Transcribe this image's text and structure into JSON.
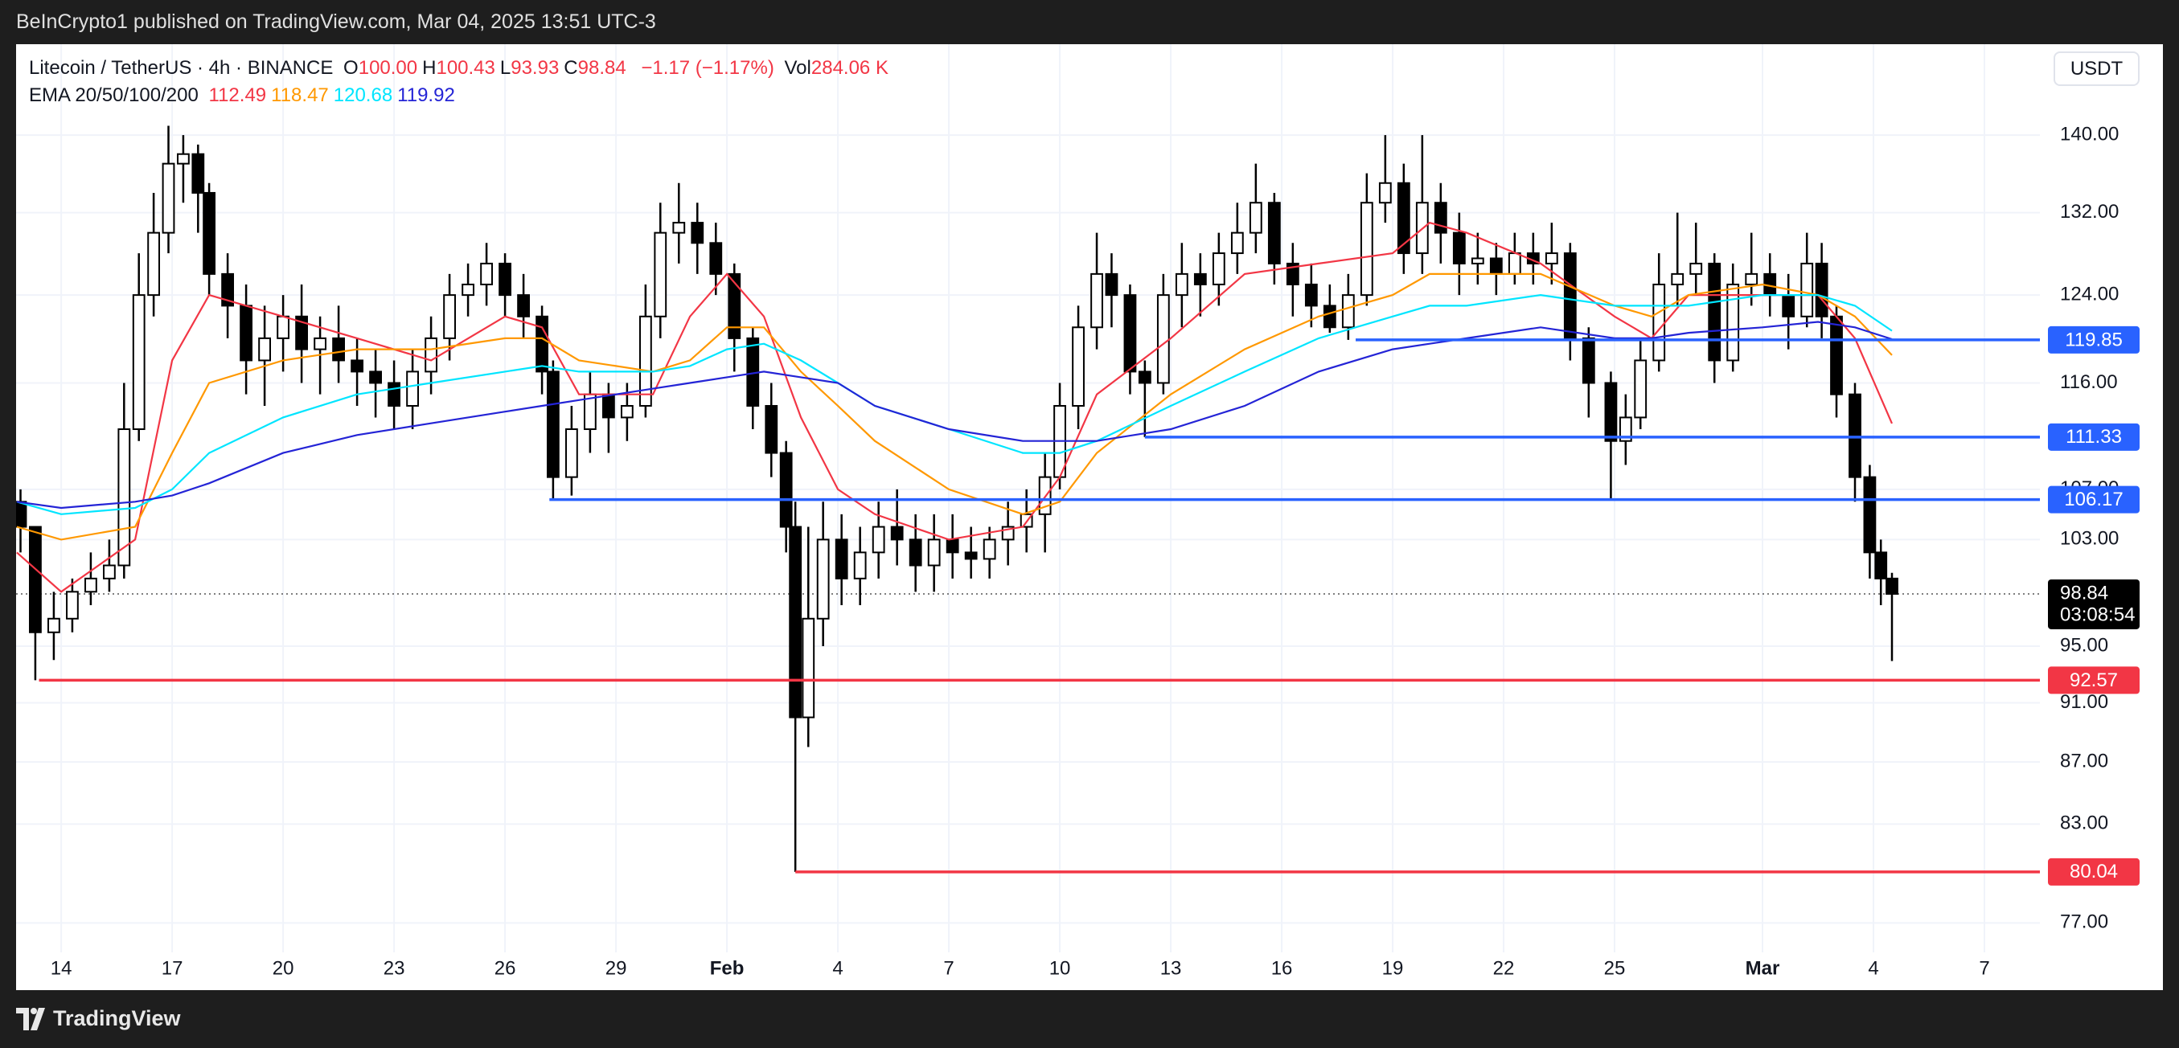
{
  "header": {
    "published": "BeInCrypto1 published on TradingView.com, Mar 04, 2025 13:51 UTC-3"
  },
  "legend": {
    "symbol": "Litecoin / TetherUS · 4h · BINANCE",
    "ohlc": [
      {
        "label": "O",
        "value": "100.00"
      },
      {
        "label": "H",
        "value": "100.43"
      },
      {
        "label": "L",
        "value": "93.93"
      },
      {
        "label": "C",
        "value": "98.84"
      }
    ],
    "change": "−1.17 (−1.17%)",
    "volume_label": "Vol",
    "volume": "284.06 K",
    "ema_label": "EMA 20/50/100/200"
  },
  "currency_button": "USDT",
  "footer": {
    "brand": "TradingView"
  },
  "chart_data": {
    "type": "candlestick",
    "log_scale": true,
    "grid": true,
    "up_color": "#ffffff",
    "down_color": "#000000",
    "xlim": [
      -1.22,
      53.5
    ],
    "ylim": [
      75.3,
      150
    ],
    "xticks": [
      {
        "value": 0,
        "label": "14"
      },
      {
        "value": 3,
        "label": "17"
      },
      {
        "value": 6,
        "label": "20"
      },
      {
        "value": 9,
        "label": "23"
      },
      {
        "value": 12,
        "label": "26"
      },
      {
        "value": 15,
        "label": "29"
      },
      {
        "value": 18,
        "label": "Feb",
        "bold": true
      },
      {
        "value": 21,
        "label": "4"
      },
      {
        "value": 24,
        "label": "7"
      },
      {
        "value": 27,
        "label": "10"
      },
      {
        "value": 30,
        "label": "13"
      },
      {
        "value": 33,
        "label": "16"
      },
      {
        "value": 36,
        "label": "19"
      },
      {
        "value": 39,
        "label": "22"
      },
      {
        "value": 42,
        "label": "25"
      },
      {
        "value": 46,
        "label": "Mar",
        "bold": true
      },
      {
        "value": 49,
        "label": "4"
      },
      {
        "value": 52,
        "label": "7"
      }
    ],
    "yticks": [
      {
        "value": 140,
        "label": "140.00"
      },
      {
        "value": 132,
        "label": "132.00"
      },
      {
        "value": 124,
        "label": "124.00"
      },
      {
        "value": 116,
        "label": "116.00"
      },
      {
        "value": 107,
        "label": "107.00"
      },
      {
        "value": 103,
        "label": "103.00"
      },
      {
        "value": 95,
        "label": "95.00"
      },
      {
        "value": 91,
        "label": "91.00"
      },
      {
        "value": 87,
        "label": "87.00"
      },
      {
        "value": 83,
        "label": "83.00"
      },
      {
        "value": 77,
        "label": "77.00"
      }
    ],
    "candles": [
      [
        -1.1,
        106,
        107,
        102,
        104
      ],
      [
        -0.7,
        104,
        104,
        92.57,
        96
      ],
      [
        -0.2,
        96,
        99,
        94,
        97
      ],
      [
        0.3,
        97,
        100,
        96,
        99
      ],
      [
        0.8,
        99,
        102,
        98,
        100
      ],
      [
        1.3,
        100,
        103,
        99,
        101
      ],
      [
        1.7,
        101,
        116,
        100,
        112
      ],
      [
        2.1,
        112,
        128,
        111,
        124
      ],
      [
        2.5,
        124,
        134,
        122,
        130
      ],
      [
        2.9,
        130,
        141,
        128,
        137
      ],
      [
        3.3,
        137,
        140,
        133,
        138
      ],
      [
        3.7,
        138,
        139,
        130,
        134
      ],
      [
        4.0,
        134,
        135,
        124,
        126
      ],
      [
        4.5,
        126,
        128,
        120,
        123
      ],
      [
        5.0,
        123,
        125,
        115,
        118
      ],
      [
        5.5,
        118,
        123,
        114,
        120
      ],
      [
        6.0,
        120,
        124,
        117,
        122
      ],
      [
        6.5,
        122,
        125,
        116,
        119
      ],
      [
        7.0,
        119,
        122,
        115,
        120
      ],
      [
        7.5,
        120,
        123,
        116,
        118
      ],
      [
        8.0,
        118,
        120,
        114,
        117
      ],
      [
        8.5,
        117,
        119,
        113,
        116
      ],
      [
        9.0,
        116,
        118,
        112,
        114
      ],
      [
        9.5,
        114,
        119,
        112,
        117
      ],
      [
        10.0,
        117,
        122,
        115,
        120
      ],
      [
        10.5,
        120,
        126,
        118,
        124
      ],
      [
        11.0,
        124,
        127,
        122,
        125
      ],
      [
        11.5,
        125,
        129,
        123,
        127
      ],
      [
        12.0,
        127,
        128,
        122,
        124
      ],
      [
        12.5,
        124,
        126,
        120,
        122
      ],
      [
        13.0,
        122,
        123,
        115,
        117
      ],
      [
        13.3,
        117,
        118,
        106.17,
        108
      ],
      [
        13.8,
        108,
        114,
        106.5,
        112
      ],
      [
        14.3,
        112,
        117,
        110,
        115
      ],
      [
        14.8,
        115,
        116,
        110,
        113
      ],
      [
        15.3,
        113,
        116,
        111,
        114
      ],
      [
        15.8,
        114,
        125,
        113,
        122
      ],
      [
        16.2,
        122,
        133,
        120,
        130
      ],
      [
        16.7,
        130,
        135,
        127,
        131
      ],
      [
        17.2,
        131,
        133,
        126,
        129
      ],
      [
        17.7,
        129,
        131,
        124,
        126
      ],
      [
        18.2,
        126,
        127,
        117,
        120
      ],
      [
        18.7,
        120,
        121,
        112,
        114
      ],
      [
        19.2,
        114,
        116,
        108,
        110
      ],
      [
        19.6,
        110,
        111,
        102,
        104
      ],
      [
        19.85,
        104,
        106,
        80.04,
        90
      ],
      [
        20.2,
        90,
        104,
        88,
        97
      ],
      [
        20.6,
        97,
        106,
        95,
        103
      ],
      [
        21.1,
        103,
        105,
        98,
        100
      ],
      [
        21.6,
        100,
        104,
        98,
        102
      ],
      [
        22.1,
        102,
        106,
        100,
        104
      ],
      [
        22.6,
        104,
        107,
        101,
        103
      ],
      [
        23.1,
        103,
        105,
        99,
        101
      ],
      [
        23.6,
        101,
        105,
        99,
        103
      ],
      [
        24.1,
        103,
        105,
        100,
        102
      ],
      [
        24.6,
        102,
        104,
        100,
        101.5
      ],
      [
        25.1,
        101.5,
        104,
        100,
        103
      ],
      [
        25.6,
        103,
        106,
        101,
        104
      ],
      [
        26.1,
        104,
        107,
        102,
        105
      ],
      [
        26.6,
        105,
        110,
        102,
        108
      ],
      [
        27.0,
        108,
        116,
        107,
        114
      ],
      [
        27.5,
        114,
        123,
        112,
        121
      ],
      [
        28.0,
        121,
        130,
        119,
        126
      ],
      [
        28.4,
        126,
        128,
        121,
        124
      ],
      [
        28.9,
        124,
        125,
        115,
        117
      ],
      [
        29.3,
        117,
        118,
        111.33,
        116
      ],
      [
        29.8,
        116,
        126,
        115,
        124
      ],
      [
        30.3,
        124,
        129,
        121,
        126
      ],
      [
        30.8,
        126,
        128,
        122,
        125
      ],
      [
        31.3,
        125,
        130,
        123,
        128
      ],
      [
        31.8,
        128,
        133,
        126,
        130
      ],
      [
        32.3,
        130,
        137,
        128,
        133
      ],
      [
        32.8,
        133,
        134,
        125,
        127
      ],
      [
        33.3,
        127,
        129,
        122,
        125
      ],
      [
        33.8,
        125,
        127,
        121,
        123
      ],
      [
        34.3,
        123,
        125,
        120.5,
        121
      ],
      [
        34.8,
        121,
        126,
        119.85,
        124
      ],
      [
        35.3,
        124,
        136,
        123,
        133
      ],
      [
        35.8,
        133,
        140,
        131,
        135
      ],
      [
        36.3,
        135,
        137,
        126,
        128
      ],
      [
        36.8,
        128,
        140,
        126,
        133
      ],
      [
        37.3,
        133,
        135,
        127,
        130
      ],
      [
        37.8,
        130,
        132,
        124,
        127
      ],
      [
        38.3,
        127,
        130,
        125,
        127.5
      ],
      [
        38.8,
        127.5,
        129,
        124,
        126
      ],
      [
        39.3,
        126,
        130,
        125,
        128
      ],
      [
        39.8,
        128,
        130,
        125,
        127
      ],
      [
        40.3,
        127,
        131,
        125,
        128
      ],
      [
        40.8,
        128,
        129,
        118,
        120
      ],
      [
        41.3,
        120,
        121,
        113,
        116
      ],
      [
        41.9,
        116,
        117,
        106.17,
        111
      ],
      [
        42.3,
        111,
        115,
        109,
        113
      ],
      [
        42.7,
        113,
        120,
        112,
        118
      ],
      [
        43.2,
        118,
        128,
        117,
        125
      ],
      [
        43.7,
        125,
        132,
        123,
        126
      ],
      [
        44.2,
        126,
        131,
        124,
        127
      ],
      [
        44.7,
        127,
        128,
        116,
        118
      ],
      [
        45.2,
        118,
        127,
        117,
        125
      ],
      [
        45.7,
        125,
        130,
        123,
        126
      ],
      [
        46.2,
        126,
        128,
        122,
        124
      ],
      [
        46.7,
        124,
        126,
        119,
        122
      ],
      [
        47.2,
        122,
        130,
        121,
        127
      ],
      [
        47.6,
        127,
        129,
        120,
        122
      ],
      [
        48.0,
        122,
        123,
        113,
        115
      ],
      [
        48.5,
        115,
        116,
        106,
        108
      ],
      [
        48.9,
        108,
        109,
        100,
        102
      ],
      [
        49.2,
        102,
        103,
        98,
        100
      ],
      [
        49.5,
        100,
        100.43,
        93.93,
        98.84
      ]
    ],
    "ema_x": [
      -1.2,
      0,
      2,
      3,
      4,
      6,
      8,
      10,
      12,
      13,
      14,
      16,
      17,
      18,
      19,
      20,
      21,
      22,
      24,
      26,
      27,
      28,
      30,
      32,
      34,
      36,
      37,
      38,
      40,
      42,
      43,
      44,
      46,
      47.5,
      48.5,
      49.5
    ],
    "series": [
      {
        "color": "#f23645",
        "values": [
          102,
          99,
          103,
          118,
          124,
          122,
          120,
          118,
          122,
          121,
          115,
          115,
          122,
          126,
          122,
          113,
          107,
          105,
          103,
          104,
          108,
          115,
          120,
          126,
          127,
          128,
          131,
          130,
          127,
          122,
          120,
          124,
          124,
          124,
          120,
          112.49
        ]
      },
      {
        "color": "#ff9800",
        "values": [
          104,
          103,
          104,
          110,
          116,
          118,
          119,
          119,
          120,
          120,
          118,
          117,
          118,
          121,
          121,
          117,
          114,
          111,
          107,
          105,
          106,
          110,
          115,
          119,
          122,
          124,
          126,
          126,
          126,
          123,
          122,
          124,
          125,
          124,
          122,
          118.47
        ]
      },
      {
        "color": "#00e5ff",
        "values": [
          106,
          105,
          105.5,
          107,
          110,
          113,
          115,
          116,
          117,
          117.5,
          117,
          117,
          117.5,
          119,
          119.5,
          118,
          116,
          114,
          112,
          110,
          110,
          111,
          114,
          117,
          120,
          122,
          123,
          123,
          124,
          123,
          123,
          123,
          124,
          124,
          123,
          120.68
        ]
      },
      {
        "color": "#2424d6",
        "values": [
          106,
          105.5,
          106,
          106.5,
          107.5,
          110,
          111.5,
          112.5,
          113.5,
          114,
          114.5,
          115.5,
          116,
          116.5,
          117,
          116.5,
          116,
          114,
          112,
          111,
          111,
          111,
          112,
          114,
          117,
          119,
          119.5,
          120,
          121,
          120,
          120,
          120.5,
          121,
          121.5,
          121,
          119.92
        ]
      }
    ],
    "levels": [
      {
        "value": 119.85,
        "start": 35.0,
        "color": "#2962ff"
      },
      {
        "value": 111.33,
        "start": 29.3,
        "color": "#2962ff"
      },
      {
        "value": 106.17,
        "start": 13.2,
        "color": "#2962ff"
      },
      {
        "value": 92.57,
        "start": -0.6,
        "color": "#f23645"
      },
      {
        "value": 80.04,
        "start": 19.85,
        "color": "#f23645"
      }
    ],
    "countdown": "03:08:54"
  }
}
